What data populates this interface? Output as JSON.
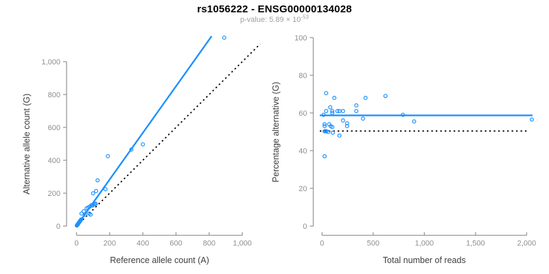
{
  "header": {
    "title": "rs1056222 - ENSG00000134028",
    "subtitle_base": "p-value: 5.89 × 10",
    "subtitle_exponent": "-53"
  },
  "colors": {
    "accent_blue": "#1E90FF",
    "axis_line": "#999999",
    "tick_label": "#8e8e8e",
    "axis_title": "#3d3d3d",
    "title_text": "#000000",
    "subtitle_text": "#a0a0a0",
    "dotted_line": "#000000",
    "background": "#ffffff"
  },
  "chart_data": [
    {
      "type": "scatter",
      "panel": "left",
      "xlabel": "Reference allele count (A)",
      "ylabel": "Alternative allele count (G)",
      "xlim": [
        0,
        1000
      ],
      "ylim": [
        0,
        1000
      ],
      "grid": false,
      "x_ticks": [
        0,
        200,
        400,
        600,
        800,
        1000
      ],
      "x_tick_labels": [
        "0",
        "200",
        "400",
        "600",
        "800",
        "1,000"
      ],
      "y_ticks": [
        0,
        200,
        400,
        600,
        800,
        1000
      ],
      "y_tick_labels": [
        "0",
        "200",
        "400",
        "600",
        "800",
        "1,000"
      ],
      "fit_line": {
        "style": "solid",
        "x1": 0,
        "y1": 0,
        "x2": 815,
        "y2": 1155
      },
      "identity_line": {
        "style": "dotted",
        "x1": 0,
        "y1": 0,
        "x2": 1108,
        "y2": 1108
      },
      "points": [
        [
          2,
          3
        ],
        [
          4,
          6
        ],
        [
          6,
          9
        ],
        [
          8,
          11
        ],
        [
          10,
          14
        ],
        [
          12,
          17
        ],
        [
          14,
          20
        ],
        [
          16,
          23
        ],
        [
          19,
          27
        ],
        [
          22,
          31
        ],
        [
          25,
          36
        ],
        [
          28,
          40
        ],
        [
          30,
          76
        ],
        [
          44,
          90
        ],
        [
          51,
          69
        ],
        [
          85,
          70
        ],
        [
          77,
          76
        ],
        [
          61,
          108
        ],
        [
          70,
          112
        ],
        [
          79,
          118
        ],
        [
          90,
          127
        ],
        [
          97,
          125
        ],
        [
          104,
          132
        ],
        [
          110,
          134
        ],
        [
          116,
          136
        ],
        [
          100,
          199
        ],
        [
          118,
          213
        ],
        [
          127,
          278
        ],
        [
          175,
          224
        ],
        [
          189,
          425
        ],
        [
          331,
          465
        ],
        [
          400,
          497
        ],
        [
          891,
          1146
        ]
      ]
    },
    {
      "type": "scatter",
      "panel": "right",
      "xlabel": "Total number of reads",
      "ylabel": "Percentage alternative (G)",
      "xlim": [
        0,
        2000
      ],
      "ylim": [
        0,
        100
      ],
      "grid": false,
      "x_ticks": [
        0,
        500,
        1000,
        1500,
        2000
      ],
      "x_tick_labels": [
        "0",
        "500",
        "1,000",
        "1,500",
        "2,000"
      ],
      "y_ticks": [
        0,
        20,
        40,
        60,
        80,
        100
      ],
      "y_tick_labels": [
        "0",
        "20",
        "40",
        "60",
        "80",
        "100"
      ],
      "mean_line": {
        "style": "solid",
        "y": 58.7
      },
      "null_line": {
        "style": "dotted",
        "y": 50.4
      },
      "points": [
        [
          25,
          37
        ],
        [
          15,
          59
        ],
        [
          25,
          50.3
        ],
        [
          32,
          50.3
        ],
        [
          43,
          50.3
        ],
        [
          60,
          49.9
        ],
        [
          105,
          49.5
        ],
        [
          170,
          48
        ],
        [
          25,
          54
        ],
        [
          25,
          53
        ],
        [
          70,
          54
        ],
        [
          85,
          53
        ],
        [
          100,
          52.5
        ],
        [
          40,
          61
        ],
        [
          40,
          70.5
        ],
        [
          80,
          63
        ],
        [
          100,
          61
        ],
        [
          100,
          60
        ],
        [
          120,
          68
        ],
        [
          150,
          61
        ],
        [
          170,
          61
        ],
        [
          205,
          61
        ],
        [
          205,
          56
        ],
        [
          245,
          54.5
        ],
        [
          245,
          53
        ],
        [
          335,
          64
        ],
        [
          335,
          61
        ],
        [
          400,
          57
        ],
        [
          425,
          68
        ],
        [
          620,
          69
        ],
        [
          790,
          59
        ],
        [
          900,
          55.5
        ],
        [
          2050,
          56.5
        ]
      ]
    }
  ]
}
